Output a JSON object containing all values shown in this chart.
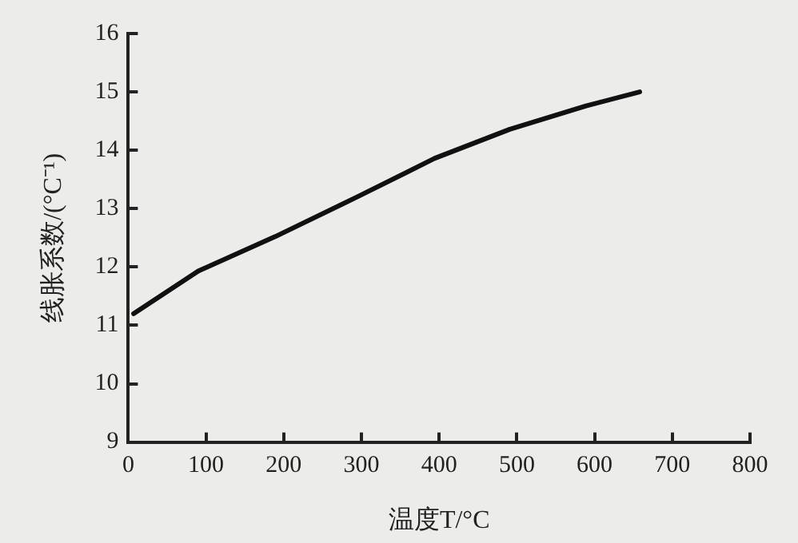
{
  "chart_data": {
    "type": "line",
    "xlabel": "温度T/°C",
    "ylabel": "线胀系数/(°C⁻¹)",
    "x": [
      7,
      90,
      189,
      296,
      394,
      491,
      589,
      658
    ],
    "series": [
      {
        "color": "#111111",
        "values": [
          11.2,
          11.93,
          12.52,
          13.21,
          13.86,
          14.36,
          14.76,
          15.0
        ]
      }
    ],
    "xlim": [
      0,
      800
    ],
    "xticks": [
      0,
      100,
      200,
      300,
      400,
      500,
      600,
      700,
      800
    ],
    "ylim": [
      9,
      16
    ],
    "yticks": [
      9,
      10,
      11,
      12,
      13,
      14,
      15,
      16
    ],
    "grid": false,
    "legend": false,
    "marker": "none",
    "line_style": "solid"
  }
}
